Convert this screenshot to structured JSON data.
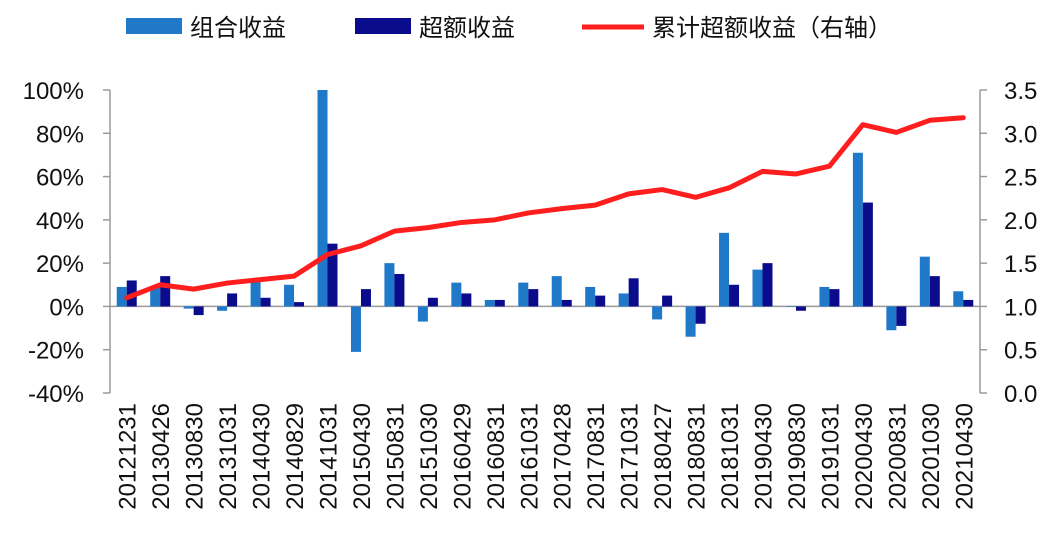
{
  "chart_data": {
    "type": "bar",
    "categories": [
      "20121231",
      "20130426",
      "20130830",
      "20131031",
      "20140430",
      "20140829",
      "20141031",
      "20150430",
      "20150831",
      "20151030",
      "20160429",
      "20160831",
      "20161031",
      "20170428",
      "20170831",
      "20171031",
      "20180427",
      "20180831",
      "20181031",
      "20190430",
      "20190830",
      "20191031",
      "20200430",
      "20200831",
      "20201030",
      "20210430"
    ],
    "series": [
      {
        "name": "组合收益",
        "kind": "bar",
        "axis": "left",
        "color": "#1F78C8",
        "values": [
          9,
          9,
          -1,
          -2,
          12,
          10,
          100,
          -21,
          20,
          -7,
          11,
          3,
          11,
          14,
          9,
          6,
          -6,
          -14,
          34,
          17,
          0,
          9,
          71,
          -11,
          23,
          7
        ]
      },
      {
        "name": "超额收益",
        "kind": "bar",
        "axis": "left",
        "color": "#0A0C8C",
        "values": [
          12,
          14,
          -4,
          6,
          4,
          2,
          29,
          8,
          15,
          4,
          6,
          3,
          8,
          3,
          5,
          13,
          5,
          -8,
          10,
          20,
          -2,
          8,
          48,
          -9,
          14,
          3
        ]
      },
      {
        "name": "累计超额收益（右轴）",
        "kind": "line",
        "axis": "right",
        "color": "#FF1E1E",
        "values": [
          1.1,
          1.25,
          1.2,
          1.27,
          1.31,
          1.35,
          1.6,
          1.7,
          1.87,
          1.91,
          1.97,
          2.0,
          2.08,
          2.13,
          2.17,
          2.3,
          2.35,
          2.26,
          2.37,
          2.56,
          2.53,
          2.62,
          3.1,
          3.01,
          3.15,
          3.18
        ]
      }
    ],
    "yleft": {
      "ticks": [
        "100%",
        "80%",
        "60%",
        "40%",
        "20%",
        "0%",
        "-20%",
        "-40%"
      ],
      "min": -40,
      "max": 100
    },
    "yright": {
      "ticks": [
        "3.5",
        "3.0",
        "2.5",
        "2.0",
        "1.5",
        "1.0",
        "0.5",
        "0.0"
      ],
      "min": 0,
      "max": 3.5
    },
    "legend_position": "top",
    "grid": false
  }
}
